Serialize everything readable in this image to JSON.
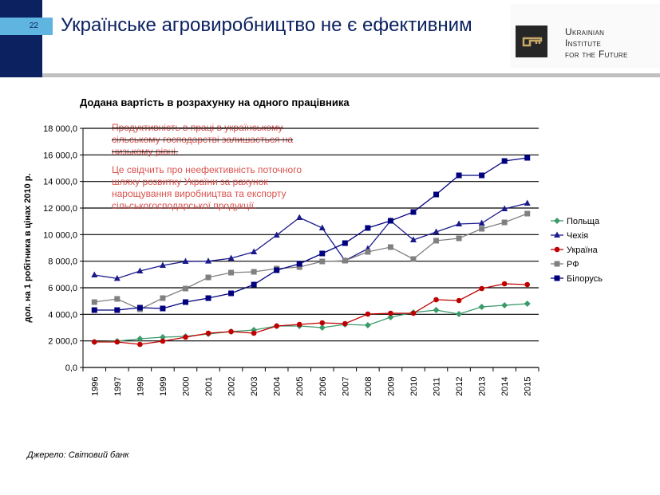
{
  "header": {
    "page_number": "22",
    "title": "Українське агровиробництво не є ефективним"
  },
  "logo": {
    "lines": [
      "Ukrainian",
      "Institute",
      "for the Future"
    ]
  },
  "note": {
    "paragraphs": [
      "Продуктивність в праці в українському сільському господарстві залишається на низькому рівні.",
      "Це свідчить про неефективність поточного шляху розвитку України за рахунок нарощування виробництва та експорту сільськогосподарської продукції."
    ]
  },
  "source": "Джерело: Світовий банк",
  "chart_data": {
    "type": "line",
    "title": "Додана вартість в розрахунку на одного працівника",
    "ylabel": "дол. на 1 робітника в цінах 2010 р.",
    "xlabel": "",
    "ylim": [
      0,
      18000
    ],
    "yticks": [
      "0,0",
      "2 000,0",
      "4 000,0",
      "6 000,0",
      "8 000,0",
      "10 000,0",
      "12 000,0",
      "14 000,0",
      "16 000,0",
      "18 000,0"
    ],
    "grid": true,
    "legend": "right",
    "categories": [
      "1996",
      "1997",
      "1998",
      "1999",
      "2000",
      "2001",
      "2002",
      "2003",
      "2004",
      "2005",
      "2006",
      "2007",
      "2008",
      "2009",
      "2010",
      "2011",
      "2012",
      "2013",
      "2014",
      "2015"
    ],
    "series": [
      {
        "name": "Польща",
        "color": "#3a9a6a",
        "marker": "diamond",
        "values": [
          1920,
          1980,
          2160,
          2280,
          2340,
          2520,
          2700,
          2820,
          3120,
          3120,
          3000,
          3240,
          3180,
          3780,
          4140,
          4320,
          4020,
          4560,
          4680,
          4800
        ]
      },
      {
        "name": "Чехія",
        "color": "#1a1a8c",
        "marker": "triangle",
        "values": [
          6960,
          6700,
          7260,
          7680,
          7980,
          8000,
          8220,
          8700,
          9960,
          11280,
          10500,
          8040,
          8940,
          11040,
          9600,
          10200,
          10800,
          10860,
          11940,
          12360
        ]
      },
      {
        "name": "Україна",
        "color": "#c00000",
        "marker": "circle",
        "values": [
          1920,
          1920,
          1740,
          1980,
          2280,
          2580,
          2700,
          2580,
          3120,
          3240,
          3360,
          3300,
          4020,
          4080,
          4080,
          5100,
          5040,
          5940,
          6300,
          6240
        ]
      },
      {
        "name": "РФ",
        "color": "#808080",
        "marker": "square",
        "values": [
          4920,
          5160,
          4380,
          5220,
          5940,
          6780,
          7140,
          7200,
          7440,
          7560,
          7980,
          8040,
          8700,
          9060,
          8160,
          9540,
          9720,
          10440,
          10920,
          11580
        ]
      },
      {
        "name": "Білорусь",
        "color": "#00007f",
        "marker": "square",
        "values": [
          4320,
          4320,
          4500,
          4440,
          4920,
          5220,
          5580,
          6240,
          7320,
          7800,
          8580,
          9360,
          10500,
          11040,
          11700,
          13020,
          14460,
          14460,
          15540,
          15780
        ]
      }
    ]
  }
}
